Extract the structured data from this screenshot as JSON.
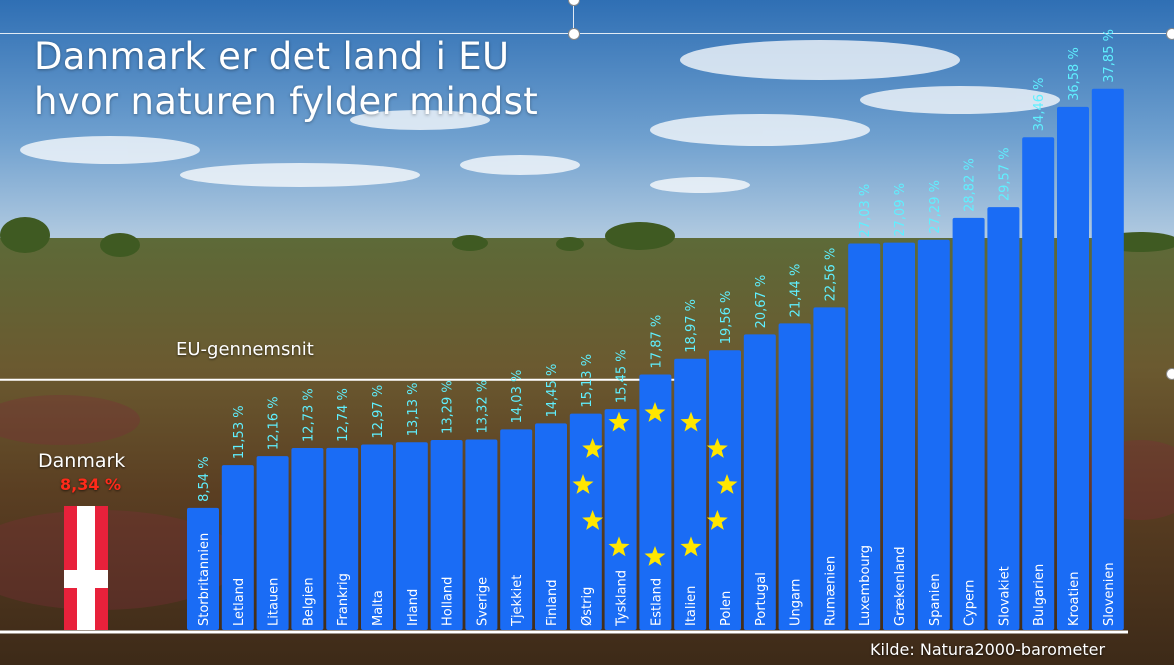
{
  "title_lines": [
    "Danmark er det land i EU",
    "hvor naturen fylder mindst"
  ],
  "avg_label": "EU-gennemsnit",
  "denmark": {
    "name": "Danmark",
    "value_label": "8,34 %"
  },
  "source": "Kilde: Natura2000-barometer",
  "colors": {
    "bar": "#1a6cf5",
    "value_label": "#5ff0ff",
    "star": "#ffe600",
    "flag_red": "#e8213b",
    "flag_white": "#ffffff",
    "avg_line": "#ffffff"
  },
  "chart_data": {
    "type": "bar",
    "categories": [
      "Storbritannien",
      "Letland",
      "Litauen",
      "Belgien",
      "Frankrig",
      "Malta",
      "Irland",
      "Holland",
      "Sverige",
      "Tjekkiet",
      "Finland",
      "Østrig",
      "Tyskland",
      "Estland",
      "Italien",
      "Polen",
      "Portugal",
      "Ungarn",
      "Rumænien",
      "Luxembourg",
      "Grækenland",
      "Spanien",
      "Cypern",
      "Slovakiet",
      "Bulgarien",
      "Kroatien",
      "Slovenien"
    ],
    "values": [
      8.54,
      11.53,
      12.16,
      12.73,
      12.74,
      12.97,
      13.13,
      13.29,
      13.32,
      14.03,
      14.45,
      15.13,
      15.45,
      17.87,
      18.97,
      19.56,
      20.67,
      21.44,
      22.56,
      27.03,
      27.09,
      27.29,
      28.82,
      29.57,
      34.46,
      36.58,
      37.85
    ],
    "value_labels": [
      "8,54 %",
      "11,53 %",
      "12,16 %",
      "12,73 %",
      "12,74 %",
      "12,97 %",
      "13,13 %",
      "13,29 %",
      "13,32 %",
      "14,03 %",
      "14,45 %",
      "15,13 %",
      "15,45 %",
      "17,87 %",
      "18,97 %",
      "19,56 %",
      "20,67 %",
      "21,44 %",
      "22,56 %",
      "27,03 %",
      "27,09 %",
      "27,29 %",
      "28,82 %",
      "29,57 %",
      "34,46 %",
      "36,58 %",
      "37,85 %"
    ],
    "eu_average": 17.5,
    "ylim": [
      0,
      40
    ],
    "title": "",
    "xlabel": "",
    "ylabel": "",
    "grid": false,
    "legend": "none"
  }
}
